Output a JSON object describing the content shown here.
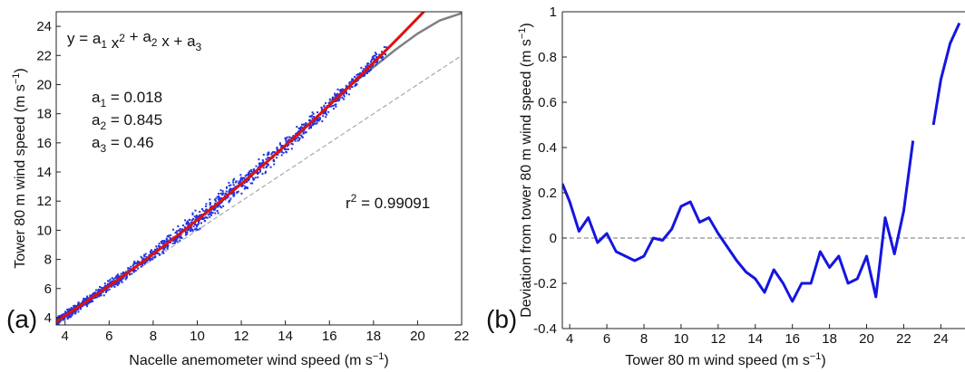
{
  "chart_data": [
    {
      "type": "scatter",
      "panel_label": "(a)",
      "title": "",
      "xlabel": {
        "main": "Nacelle anemometer wind speed (m s",
        "sup": "−1",
        "tail": ")"
      },
      "ylabel": {
        "main": "Tower 80 m  wind speed (m s",
        "sup": "−1",
        "tail": ")"
      },
      "xlim": [
        3.6,
        22
      ],
      "ylim": [
        3.5,
        25
      ],
      "xticks": [
        4,
        6,
        8,
        10,
        12,
        14,
        16,
        18,
        20,
        22
      ],
      "yticks": [
        4,
        6,
        8,
        10,
        12,
        14,
        16,
        18,
        20,
        22,
        24
      ],
      "grid": false,
      "equation": {
        "parts": [
          {
            "t": "y = a"
          },
          {
            "t": "1",
            "sub": true
          },
          {
            "t": " x"
          },
          {
            "t": "2",
            "sup": true
          },
          {
            "t": " + a"
          },
          {
            "t": "2",
            "sub": true
          },
          {
            "t": " x + a"
          },
          {
            "t": "3",
            "sub": true
          }
        ]
      },
      "coefficients": [
        {
          "name": "a",
          "sub": "1",
          "value": "= 0.018"
        },
        {
          "name": "a",
          "sub": "2",
          "value": "= 0.845"
        },
        {
          "name": "a",
          "sub": "3",
          "value": "= 0.46"
        }
      ],
      "r2": {
        "name": "r",
        "sup": "2",
        "value": " = 0.99091"
      },
      "fit": {
        "a1": 0.018,
        "a2": 0.845,
        "a3": 0.46,
        "x_range": [
          3.6,
          20.5
        ]
      },
      "scatter": {
        "x_range": [
          3.6,
          18.6
        ],
        "n_points": 1500,
        "spread_by_x": [
          [
            4,
            0.25
          ],
          [
            8,
            0.35
          ],
          [
            10,
            0.5
          ],
          [
            12,
            0.6
          ],
          [
            14,
            0.45
          ],
          [
            18,
            0.4
          ]
        ]
      },
      "gray_curve": {
        "x": [
          16,
          17,
          18,
          19,
          20,
          21,
          22
        ],
        "y": [
          18.8,
          20.0,
          21.2,
          22.4,
          23.5,
          24.4,
          24.9
        ]
      },
      "reference_line": {
        "x": [
          3.6,
          22
        ],
        "y": [
          3.6,
          22
        ],
        "style": "dashed"
      },
      "colors": {
        "points": "#2233dd",
        "fit": "#e01010",
        "gray": "#808080",
        "reference": "#999999"
      }
    },
    {
      "type": "line",
      "panel_label": "(b)",
      "title": "",
      "xlabel": {
        "main": "Tower 80 m wind speed (m s",
        "sup": "−1",
        "tail": ")"
      },
      "ylabel": {
        "main": "Deviation from tower 80 m wind speed (m s",
        "sup": "−1",
        "tail": ")"
      },
      "xlim": [
        3.6,
        25.4
      ],
      "ylim": [
        -0.4,
        1.0
      ],
      "xticks": [
        4,
        6,
        8,
        10,
        12,
        14,
        16,
        18,
        20,
        22,
        24
      ],
      "yticks": [
        -0.4,
        -0.2,
        0,
        0.2,
        0.4,
        0.6,
        0.8,
        1
      ],
      "ytick_labels": [
        "-0.4",
        "-0.2",
        "0",
        "0.2",
        "0.4",
        "0.6",
        "0.8",
        "1"
      ],
      "grid": false,
      "zero_line": true,
      "series": [
        {
          "color": "#1515e0",
          "segments": [
            {
              "x": [
                3.6,
                4.0,
                4.5,
                5.0,
                5.5,
                6.0,
                6.5,
                7.0,
                7.5,
                8.0,
                8.5,
                9.0,
                9.5,
                10.0,
                10.5,
                11.0,
                11.5,
                12.0,
                12.5,
                13.0,
                13.5,
                14.0,
                14.5,
                15.0,
                15.5,
                16.0,
                16.5,
                17.0,
                17.5,
                18.0,
                18.5,
                19.0,
                19.5,
                20.0,
                20.5,
                21.0,
                21.5,
                22.0,
                22.5
              ],
              "y": [
                0.24,
                0.16,
                0.03,
                0.09,
                -0.02,
                0.02,
                -0.06,
                -0.08,
                -0.1,
                -0.08,
                0.0,
                -0.01,
                0.04,
                0.14,
                0.16,
                0.07,
                0.09,
                0.02,
                -0.04,
                -0.1,
                -0.15,
                -0.18,
                -0.24,
                -0.14,
                -0.2,
                -0.28,
                -0.2,
                -0.2,
                -0.06,
                -0.13,
                -0.08,
                -0.2,
                -0.18,
                -0.08,
                -0.26,
                0.09,
                -0.07,
                0.12,
                0.43
              ]
            },
            {
              "x": [
                23.6,
                24.0,
                24.5,
                25.0
              ],
              "y": [
                0.5,
                0.7,
                0.86,
                0.95
              ]
            }
          ]
        }
      ]
    }
  ]
}
